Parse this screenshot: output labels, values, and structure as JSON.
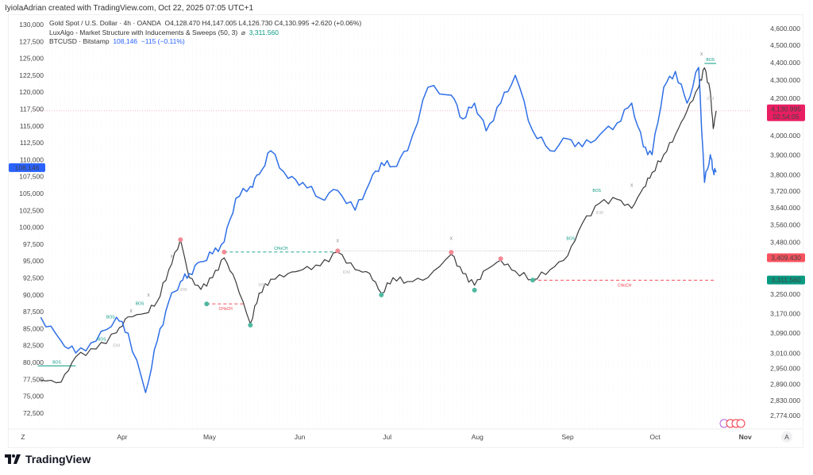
{
  "credit": "IyiolaAdrian created with TradingView.com, Oct 22, 2025 07:05 UTC+1",
  "legend": {
    "gold": "Gold Spot / U.S. Dollar · 4h · OANDA",
    "gold_ohlc": "O4,128.470  H4,147.005  L4,126.730  C4,130.995  +2.620 (+0.06%)",
    "indicator": "LuxAlgo - Market Structure with Inducements & Sweeps (50, 3)",
    "indicator_symbol": "⌀",
    "indicator_value": "3,311.560",
    "btc": "BTCUSD · Bitstamp",
    "btc_value": "108,146",
    "btc_change": "−115 (−0.11%)"
  },
  "brand": "TradingView",
  "time_axis": {
    "left_button": "Z",
    "right_button": "A"
  },
  "colors": {
    "gold_line": "#3a3a3a",
    "btc_line": "#2f6fe6",
    "bull": "#089981",
    "bear": "#f23645",
    "last_price": "#e91e63"
  },
  "chart_data": {
    "type": "line",
    "x_type": "date",
    "x_ticks": [
      {
        "date": "2025-04-01",
        "label": "Apr"
      },
      {
        "date": "2025-05-01",
        "label": "May"
      },
      {
        "date": "2025-06-01",
        "label": "Jun"
      },
      {
        "date": "2025-07-01",
        "label": "Jul"
      },
      {
        "date": "2025-08-01",
        "label": "Aug"
      },
      {
        "date": "2025-09-01",
        "label": "Sep"
      },
      {
        "date": "2025-10-01",
        "label": "Oct"
      },
      {
        "date": "2025-11-01",
        "label": "Nov"
      }
    ],
    "xlim": [
      "2025-03-03",
      "2025-11-10"
    ],
    "left_axis": {
      "scale": "linear",
      "ylim": [
        72500,
        130000
      ],
      "ticks": [
        "72,500",
        "75,000",
        "77,500",
        "80,000",
        "82,500",
        "85,000",
        "87,500",
        "90,000",
        "92,500",
        "95,000",
        "97,500",
        "100,000",
        "102,500",
        "105,000",
        "107,500",
        "110,000",
        "112,500",
        "115,000",
        "117,500",
        "120,000",
        "122,500",
        "125,000",
        "127,500",
        "130,000"
      ]
    },
    "right_axis": {
      "scale": "log",
      "ylim": [
        2774,
        4600
      ],
      "ticks": [
        "2,774.000",
        "2,830.000",
        "2,890.000",
        "2,950.000",
        "3,010.000",
        "3,090.000",
        "3,170.000",
        "3,250.000",
        "3,480.000",
        "3,560.000",
        "3,640.000",
        "3,720.000",
        "3,800.000",
        "3,900.000",
        "4,000.000",
        "4,200.000",
        "4,300.000",
        "4,400.000",
        "4,500.000",
        "4,600.000"
      ]
    },
    "grid": true,
    "dates": [
      "2025-03-04",
      "2025-03-11",
      "2025-03-16",
      "2025-03-23",
      "2025-03-30",
      "2025-04-03",
      "2025-04-09",
      "2025-04-13",
      "2025-04-17",
      "2025-04-21",
      "2025-04-24",
      "2025-04-28",
      "2025-05-02",
      "2025-05-06",
      "2025-05-10",
      "2025-05-15",
      "2025-05-18",
      "2025-05-22",
      "2025-05-28",
      "2025-06-02",
      "2025-06-08",
      "2025-06-14",
      "2025-06-20",
      "2025-06-25",
      "2025-06-29",
      "2025-07-03",
      "2025-07-08",
      "2025-07-15",
      "2025-07-23",
      "2025-07-27",
      "2025-07-31",
      "2025-08-04",
      "2025-08-09",
      "2025-08-14",
      "2025-08-20",
      "2025-08-26",
      "2025-09-01",
      "2025-09-06",
      "2025-09-12",
      "2025-09-18",
      "2025-09-23",
      "2025-09-27",
      "2025-09-30",
      "2025-10-04",
      "2025-10-08",
      "2025-10-12",
      "2025-10-16",
      "2025-10-18",
      "2025-10-20",
      "2025-10-21",
      "2025-10-22"
    ],
    "series": [
      {
        "name": "Gold Spot / U.S. Dollar",
        "axis": "right",
        "values": [
          2906,
          2898,
          2995,
          3026,
          3091,
          3156,
          3171,
          3220,
          3357,
          3491,
          3322,
          3271,
          3322,
          3409,
          3305,
          3128,
          3255,
          3315,
          3340,
          3357,
          3374,
          3434,
          3357,
          3340,
          3255,
          3322,
          3305,
          3322,
          3425,
          3340,
          3289,
          3357,
          3398,
          3350,
          3315,
          3357,
          3418,
          3565,
          3662,
          3680,
          3637,
          3736,
          3811,
          3901,
          4004,
          4131,
          4260,
          4370,
          4233,
          4036,
          4131
        ]
      },
      {
        "name": "BTCUSD",
        "axis": "left",
        "values": [
          86680,
          83160,
          81400,
          83160,
          86680,
          84330,
          75530,
          83160,
          89030,
          91960,
          93140,
          94900,
          96070,
          97840,
          104290,
          106050,
          107810,
          111330,
          107220,
          106640,
          104290,
          105460,
          102530,
          106640,
          109570,
          108990,
          111330,
          120720,
          119550,
          116030,
          118380,
          114270,
          118380,
          122490,
          114270,
          111330,
          113090,
          111920,
          113680,
          115440,
          118380,
          111920,
          110740,
          120720,
          123070,
          118380,
          123660,
          106640,
          110740,
          108390,
          108146
        ]
      }
    ],
    "price_labels": [
      {
        "axis": "right",
        "value": "4,130.995",
        "sub": "02:54:05",
        "price": 4131,
        "color": "#e91e63"
      },
      {
        "axis": "right",
        "value": "3,409.430",
        "price": 3409.43,
        "color": "#f7525f"
      },
      {
        "axis": "right",
        "value": "3,311.560",
        "price": 3311.56,
        "color": "#089981"
      },
      {
        "axis": "left",
        "value": "108,146",
        "price": 108146,
        "color": "#2962ff"
      }
    ],
    "annotations": {
      "swing_highs": [
        {
          "date": "2025-04-21",
          "price": 3491
        },
        {
          "date": "2025-05-06",
          "price": 3435
        },
        {
          "date": "2025-06-14",
          "price": 3440
        },
        {
          "date": "2025-07-23",
          "price": 3434
        },
        {
          "date": "2025-08-09",
          "price": 3405
        }
      ],
      "swing_lows": [
        {
          "date": "2025-04-30",
          "price": 3210
        },
        {
          "date": "2025-05-15",
          "price": 3122
        },
        {
          "date": "2025-06-29",
          "price": 3248
        },
        {
          "date": "2025-07-31",
          "price": 3268
        },
        {
          "date": "2025-08-20",
          "price": 3311
        }
      ],
      "levels": [
        {
          "from": "2025-05-06",
          "to": "2025-06-14",
          "price": 3435,
          "style": "dashed",
          "kind": "bull",
          "label": "CHoCH"
        },
        {
          "from": "2025-04-30",
          "to": "2025-05-13",
          "price": 3210,
          "style": "dashed",
          "kind": "bear",
          "label": "CHoCH"
        },
        {
          "from": "2025-08-20",
          "to": "2025-10-22",
          "price": 3311,
          "style": "dashed",
          "kind": "bear",
          "label": "CHoCH"
        },
        {
          "from": "2025-06-14",
          "to": "2025-09-01",
          "price": 3440,
          "style": "dotted",
          "kind": "neutral",
          "label": ""
        },
        {
          "from": "2025-03-03",
          "to": "2025-03-16",
          "price": 2960,
          "style": "solid",
          "kind": "bull",
          "label": "BOS"
        },
        {
          "from": "2025-10-18",
          "to": "2025-10-22",
          "price": 4395,
          "style": "solid",
          "kind": "bull",
          "label": "BOS"
        }
      ],
      "labels": [
        {
          "date": "2025-03-28",
          "price": 3150,
          "text": "BOS",
          "kind": "bull"
        },
        {
          "date": "2025-03-25",
          "price": 3060,
          "text": "BOS",
          "kind": "bull"
        },
        {
          "date": "2025-04-07",
          "price": 3205,
          "text": "BOS",
          "kind": "bull"
        },
        {
          "date": "2025-03-30",
          "price": 3035,
          "text": "IDM",
          "kind": "neutral"
        },
        {
          "date": "2025-04-22",
          "price": 3265,
          "text": "IDM",
          "kind": "neutral"
        },
        {
          "date": "2025-05-19",
          "price": 3285,
          "text": "IDM",
          "kind": "neutral"
        },
        {
          "date": "2025-06-17",
          "price": 3340,
          "text": "IDM",
          "kind": "neutral"
        },
        {
          "date": "2025-09-02",
          "price": 3490,
          "text": "BOS",
          "kind": "bull"
        },
        {
          "date": "2025-09-11",
          "price": 3715,
          "text": "BOS",
          "kind": "bull"
        },
        {
          "date": "2025-09-12",
          "price": 3610,
          "text": "IDM",
          "kind": "neutral"
        },
        {
          "date": "2025-10-20",
          "price": 4190,
          "text": "IDM",
          "kind": "neutral"
        },
        {
          "date": "2025-04-10",
          "price": 3240,
          "text": "X",
          "kind": "neutral"
        },
        {
          "date": "2025-04-04",
          "price": 3175,
          "text": "X",
          "kind": "neutral"
        },
        {
          "date": "2025-04-18",
          "price": 3410,
          "text": "X",
          "kind": "neutral"
        },
        {
          "date": "2025-06-14",
          "price": 3480,
          "text": "X",
          "kind": "neutral"
        },
        {
          "date": "2025-07-23",
          "price": 3490,
          "text": "X",
          "kind": "neutral"
        },
        {
          "date": "2025-09-23",
          "price": 3740,
          "text": "X",
          "kind": "neutral"
        },
        {
          "date": "2025-10-17",
          "price": 4440,
          "text": "X",
          "kind": "neutral"
        }
      ]
    }
  }
}
